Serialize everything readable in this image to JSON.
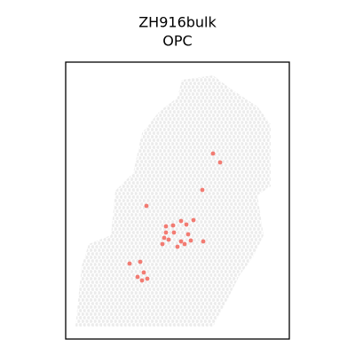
{
  "chart_data": {
    "type": "scatter",
    "title": "ZH916bulk",
    "subtitle": "OPC",
    "color": "#f27b72",
    "x": [
      166,
      174,
      154,
      91,
      113,
      121,
      130,
      136,
      144,
      113,
      122,
      138,
      111,
      116,
      130,
      126,
      134,
      141,
      155,
      109,
      72,
      84,
      88,
      81,
      86,
      92
    ],
    "values": [
      103,
      113,
      144,
      162,
      185,
      184,
      179,
      183,
      178,
      192,
      192,
      194,
      198,
      200,
      202,
      208,
      205,
      201,
      202,
      205,
      227,
      225,
      237,
      242,
      246,
      244
    ],
    "xlim": [
      0,
      252
    ],
    "ylim": [
      312,
      0
    ]
  }
}
